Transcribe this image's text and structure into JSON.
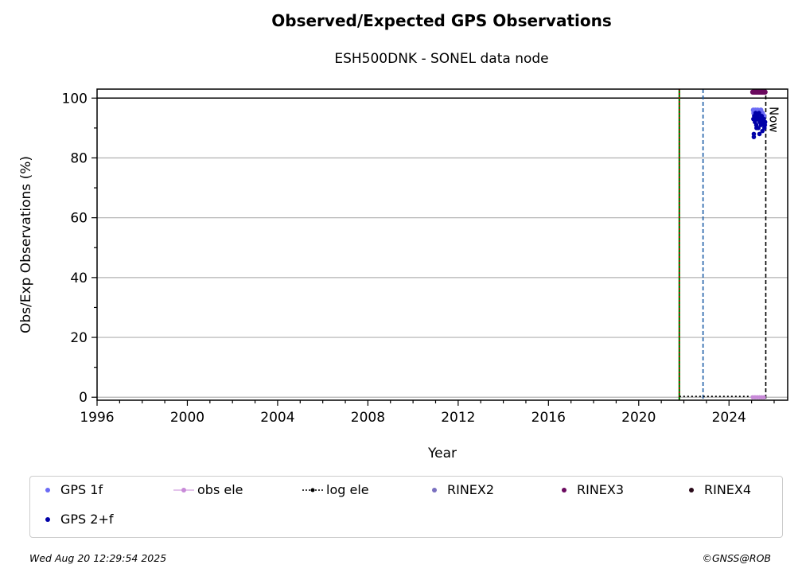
{
  "title": "Observed/Expected GPS Observations",
  "subtitle": "ESH500DNK - SONEL data node",
  "footer": {
    "timestamp": "Wed Aug 20 12:29:54 2025",
    "credit": "©GNSS@ROB"
  },
  "colors": {
    "gps1f": "#6b6bf5",
    "gps2f": "#0000a8",
    "obs_ele": "#c88ad8",
    "log_ele": "#000000",
    "rinex2": "#7a70c0",
    "rinex3": "#6b0a5f",
    "rinex4": "#2a0a1a",
    "green_line": "#008000",
    "red_line": "#cc0000",
    "blue_dashed": "#1f5fa8",
    "grid": "#b0b0b0"
  },
  "chart_data": {
    "type": "scatter",
    "title": "Observed/Expected GPS Observations",
    "subtitle": "ESH500DNK - SONEL data node",
    "xlabel": "Year",
    "ylabel": "Obs/Exp Observations (%)",
    "xlim": [
      1996,
      2026.6
    ],
    "ylim": [
      -1,
      103
    ],
    "x_ticks": [
      1996,
      2000,
      2004,
      2008,
      2012,
      2016,
      2020,
      2024
    ],
    "y_ticks": [
      0,
      20,
      40,
      60,
      80,
      100
    ],
    "grid": "y",
    "reference_line_y": 100,
    "vertical_lines": [
      {
        "x": 2021.8,
        "style": "solid",
        "color": "green"
      },
      {
        "x": 2021.8,
        "style": "dotted",
        "color": "red"
      },
      {
        "x": 2022.85,
        "style": "dashed",
        "color": "blue"
      },
      {
        "x": 2025.63,
        "style": "dashed",
        "color": "black",
        "label": "Now"
      }
    ],
    "series": [
      {
        "name": "GPS 1f",
        "x": [
          2025.08,
          2025.1,
          2025.13,
          2025.17,
          2025.2,
          2025.24,
          2025.27,
          2025.3,
          2025.34,
          2025.37,
          2025.41,
          2025.44,
          2025.48,
          2025.51,
          2025.55,
          2025.58
        ],
        "y": [
          96,
          95,
          94,
          96,
          93,
          95,
          96,
          94,
          95,
          93,
          96,
          94,
          95,
          92,
          94,
          91
        ]
      },
      {
        "name": "GPS 2+f",
        "x": [
          2025.08,
          2025.1,
          2025.12,
          2025.15,
          2025.18,
          2025.21,
          2025.24,
          2025.27,
          2025.3,
          2025.33,
          2025.36,
          2025.39,
          2025.42,
          2025.45,
          2025.48,
          2025.51,
          2025.54,
          2025.57,
          2025.6,
          2025.1,
          2025.22,
          2025.35,
          2025.47,
          2025.58
        ],
        "y": [
          93,
          88,
          94,
          92,
          95,
          91,
          93,
          94,
          90,
          95,
          92,
          93,
          91,
          94,
          89,
          92,
          93,
          90,
          92,
          87,
          90,
          88,
          93,
          91
        ]
      },
      {
        "name": "obs ele",
        "x": [
          2025.05,
          2025.15,
          2025.25,
          2025.35,
          2025.45,
          2025.55
        ],
        "y": [
          0,
          0,
          0,
          0,
          0,
          0
        ]
      },
      {
        "name": "log ele",
        "x": [
          2021.8,
          2025.63
        ],
        "y": [
          0,
          0
        ]
      },
      {
        "name": "RINEX2",
        "x": [],
        "y": []
      },
      {
        "name": "RINEX3",
        "x": [
          2025.05,
          2025.1,
          2025.15,
          2025.2,
          2025.25,
          2025.3,
          2025.35,
          2025.4,
          2025.45,
          2025.5,
          2025.55,
          2025.6
        ],
        "y": [
          102,
          102,
          102,
          102,
          102,
          102,
          102,
          102,
          102,
          102,
          102,
          102
        ]
      },
      {
        "name": "RINEX4",
        "x": [],
        "y": []
      }
    ],
    "legend_position": "bottom"
  }
}
